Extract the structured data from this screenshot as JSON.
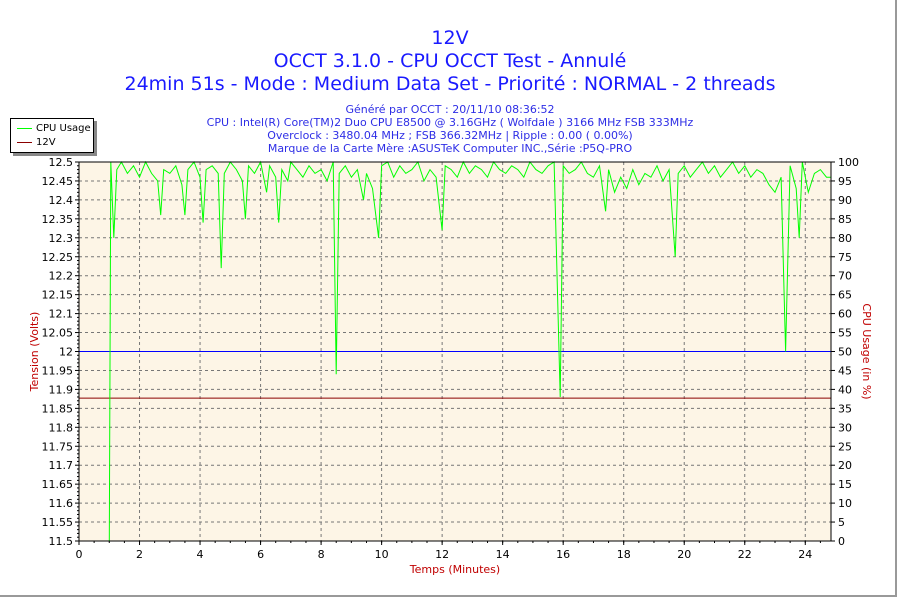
{
  "header": {
    "title": "12V",
    "subtitle1": "OCCT 3.1.0 - CPU OCCT Test - Annulé",
    "subtitle2": "24min 51s - Mode : Medium Data Set - Priorité : NORMAL - 2 threads",
    "info": [
      "Généré par OCCT : 20/11/10 08:36:52",
      "CPU : Intel(R) Core(TM)2 Duo CPU E8500 @ 3.16GHz ( Wolfdale ) 3166 MHz FSB 333MHz",
      "Overclock : 3480.04 MHz ; FSB 366.32MHz | Ripple : 0.00 ( 0.00%)",
      "Marque de la Carte Mère :ASUSTeK Computer INC.,Série :P5Q-PRO"
    ]
  },
  "colors": {
    "cpu": "#00ff00",
    "volt": "#8b0000",
    "ref": "#0000ff",
    "plot_bg": "#fdf5e6",
    "title": "#1a1aff",
    "axis_label": "#c00000"
  },
  "chart_data": {
    "type": "line",
    "xlabel": "Temps (Minutes)",
    "ylabel_left": "Tension (Volts)",
    "ylabel_right": "CPU Usage (in %)",
    "xlim": [
      0,
      24.85
    ],
    "ylim_left": [
      11.5,
      12.5
    ],
    "ylim_right": [
      0,
      100
    ],
    "x_ticks": [
      0,
      2,
      4,
      6,
      8,
      10,
      12,
      14,
      16,
      18,
      20,
      22,
      24
    ],
    "y_left_ticks": [
      "11.5",
      "11.55",
      "11.6",
      "11.65",
      "11.7",
      "11.75",
      "11.8",
      "11.85",
      "11.9",
      "11.95",
      "12",
      "12.05",
      "12.1",
      "12.15",
      "12.2",
      "12.25",
      "12.3",
      "12.35",
      "12.4",
      "12.45",
      "12.5"
    ],
    "y_right_ticks": [
      0,
      5,
      10,
      15,
      20,
      25,
      30,
      35,
      40,
      45,
      50,
      55,
      60,
      65,
      70,
      75,
      80,
      85,
      90,
      95,
      100
    ],
    "grid": true,
    "legend": {
      "placement": "top-left",
      "entries": [
        "CPU Usage",
        "12V"
      ]
    },
    "reference_line_volts": 12,
    "series": [
      {
        "name": "12V",
        "axis": "left",
        "points": [
          [
            0,
            11.877
          ],
          [
            24.85,
            11.877
          ]
        ]
      },
      {
        "name": "CPU Usage",
        "axis": "right",
        "points": [
          [
            1.0,
            0
          ],
          [
            1.05,
            100
          ],
          [
            1.15,
            80
          ],
          [
            1.25,
            98
          ],
          [
            1.4,
            100
          ],
          [
            1.6,
            97
          ],
          [
            1.8,
            99
          ],
          [
            2.0,
            96
          ],
          [
            2.2,
            100
          ],
          [
            2.4,
            97
          ],
          [
            2.6,
            95
          ],
          [
            2.7,
            86
          ],
          [
            2.8,
            98
          ],
          [
            3.0,
            97
          ],
          [
            3.2,
            99
          ],
          [
            3.4,
            94
          ],
          [
            3.5,
            86
          ],
          [
            3.6,
            98
          ],
          [
            3.8,
            100
          ],
          [
            4.0,
            96
          ],
          [
            4.1,
            84
          ],
          [
            4.2,
            98
          ],
          [
            4.4,
            99
          ],
          [
            4.6,
            97
          ],
          [
            4.7,
            72
          ],
          [
            4.8,
            97
          ],
          [
            5.0,
            100
          ],
          [
            5.2,
            98
          ],
          [
            5.4,
            95
          ],
          [
            5.5,
            85
          ],
          [
            5.6,
            99
          ],
          [
            5.8,
            97
          ],
          [
            6.0,
            100
          ],
          [
            6.2,
            92
          ],
          [
            6.3,
            99
          ],
          [
            6.5,
            96
          ],
          [
            6.6,
            84
          ],
          [
            6.7,
            98
          ],
          [
            6.9,
            95
          ],
          [
            7.0,
            100
          ],
          [
            7.2,
            98
          ],
          [
            7.4,
            96
          ],
          [
            7.6,
            99
          ],
          [
            7.8,
            97
          ],
          [
            8.0,
            98
          ],
          [
            8.2,
            95
          ],
          [
            8.4,
            100
          ],
          [
            8.5,
            44
          ],
          [
            8.6,
            97
          ],
          [
            8.8,
            99
          ],
          [
            9.0,
            96
          ],
          [
            9.2,
            98
          ],
          [
            9.4,
            90
          ],
          [
            9.5,
            97
          ],
          [
            9.7,
            93
          ],
          [
            9.9,
            80
          ],
          [
            10.0,
            99
          ],
          [
            10.2,
            100
          ],
          [
            10.4,
            96
          ],
          [
            10.6,
            99
          ],
          [
            10.8,
            97
          ],
          [
            11.0,
            98
          ],
          [
            11.2,
            100
          ],
          [
            11.4,
            95
          ],
          [
            11.6,
            98
          ],
          [
            11.8,
            96
          ],
          [
            12.0,
            82
          ],
          [
            12.1,
            99
          ],
          [
            12.3,
            98
          ],
          [
            12.5,
            96
          ],
          [
            12.7,
            100
          ],
          [
            12.9,
            97
          ],
          [
            13.1,
            99
          ],
          [
            13.3,
            98
          ],
          [
            13.5,
            96
          ],
          [
            13.7,
            100
          ],
          [
            13.9,
            98
          ],
          [
            14.1,
            97
          ],
          [
            14.3,
            99
          ],
          [
            14.5,
            98
          ],
          [
            14.7,
            96
          ],
          [
            14.9,
            100
          ],
          [
            15.1,
            98
          ],
          [
            15.3,
            97
          ],
          [
            15.5,
            99
          ],
          [
            15.7,
            100
          ],
          [
            15.9,
            38
          ],
          [
            16.0,
            99
          ],
          [
            16.2,
            97
          ],
          [
            16.4,
            98
          ],
          [
            16.6,
            100
          ],
          [
            16.8,
            97
          ],
          [
            17.0,
            96
          ],
          [
            17.2,
            99
          ],
          [
            17.4,
            87
          ],
          [
            17.5,
            98
          ],
          [
            17.7,
            92
          ],
          [
            17.9,
            96
          ],
          [
            18.1,
            93
          ],
          [
            18.3,
            98
          ],
          [
            18.5,
            94
          ],
          [
            18.7,
            97
          ],
          [
            18.9,
            96
          ],
          [
            19.1,
            99
          ],
          [
            19.3,
            95
          ],
          [
            19.5,
            98
          ],
          [
            19.7,
            75
          ],
          [
            19.8,
            97
          ],
          [
            20.0,
            99
          ],
          [
            20.2,
            96
          ],
          [
            20.4,
            98
          ],
          [
            20.6,
            100
          ],
          [
            20.8,
            97
          ],
          [
            21.0,
            99
          ],
          [
            21.2,
            96
          ],
          [
            21.4,
            98
          ],
          [
            21.6,
            100
          ],
          [
            21.8,
            97
          ],
          [
            22.0,
            99
          ],
          [
            22.2,
            96
          ],
          [
            22.4,
            98
          ],
          [
            22.6,
            97
          ],
          [
            22.8,
            94
          ],
          [
            23.0,
            92
          ],
          [
            23.2,
            96
          ],
          [
            23.35,
            50
          ],
          [
            23.5,
            99
          ],
          [
            23.7,
            93
          ],
          [
            23.8,
            80
          ],
          [
            23.9,
            100
          ],
          [
            24.1,
            92
          ],
          [
            24.3,
            97
          ],
          [
            24.5,
            98
          ],
          [
            24.7,
            96
          ],
          [
            24.85,
            96
          ]
        ]
      }
    ]
  }
}
